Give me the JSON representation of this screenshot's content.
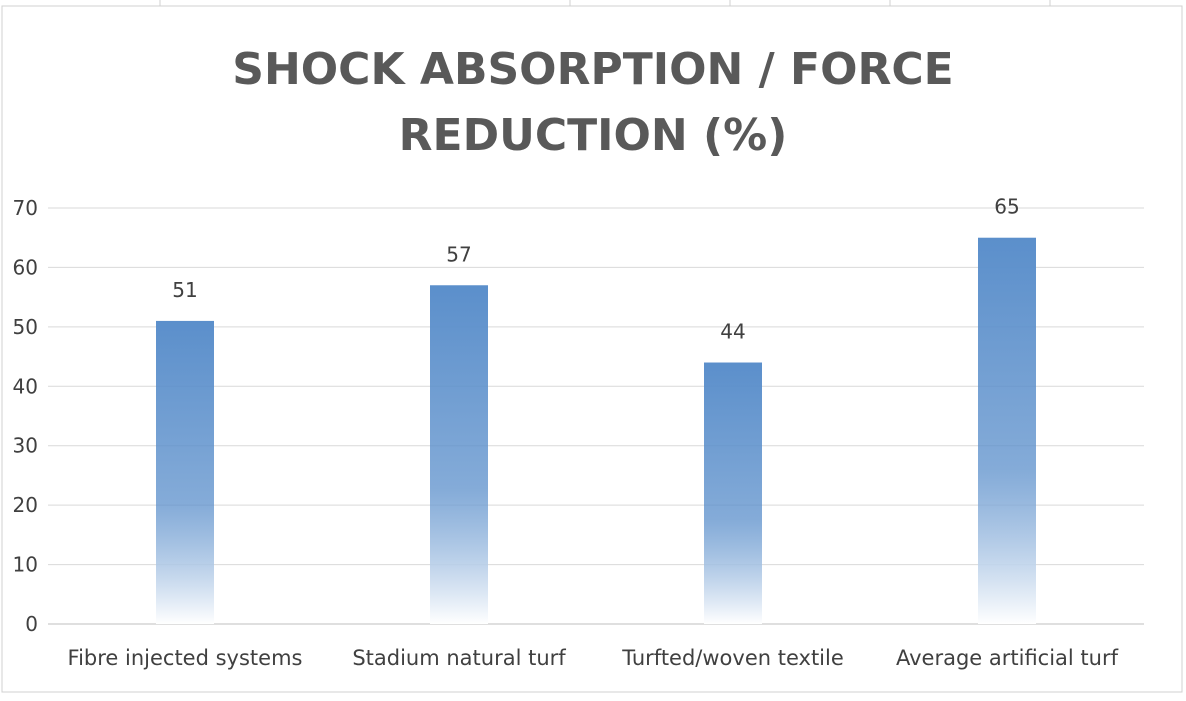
{
  "chart_data": {
    "type": "bar",
    "title_lines": [
      "SHOCK ABSORPTION / FORCE",
      "REDUCTION (%)"
    ],
    "categories": [
      "Fibre injected systems",
      "Stadium natural turf",
      "Turfted/woven textile",
      "Average artificial turf"
    ],
    "values": [
      51,
      57,
      44,
      65
    ],
    "data_labels": [
      "51",
      "57",
      "44",
      "65"
    ],
    "xlabel": "",
    "ylabel": "",
    "ylim": [
      0,
      70
    ],
    "yticks": [
      0,
      10,
      20,
      30,
      40,
      50,
      60,
      70
    ],
    "grid": true,
    "legend": "none"
  },
  "colors": {
    "bar_top": "#5b8fcb",
    "bar_bottom": "#ffffff",
    "title": "#595959",
    "text": "#404040",
    "gridline": "#d9d9d9",
    "axis": "#bfbfbf",
    "sheet_lines": "#d0d0d0"
  }
}
